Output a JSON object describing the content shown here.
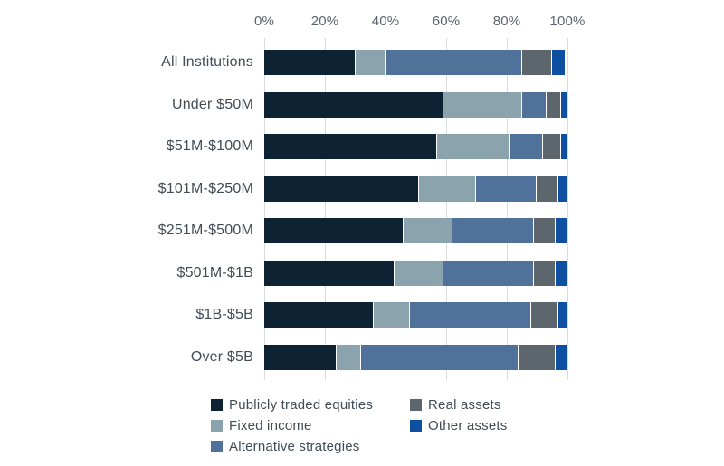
{
  "chart_data": {
    "type": "bar",
    "orientation": "horizontal",
    "stacked": true,
    "title": "",
    "xlabel": "",
    "ylabel": "",
    "xlim": [
      0,
      100
    ],
    "x_ticks": [
      "0%",
      "20%",
      "40%",
      "60%",
      "80%",
      "100%"
    ],
    "x_tick_values": [
      0,
      20,
      40,
      60,
      80,
      100
    ],
    "grid": "vertical",
    "axis_position": "top",
    "legend_position": "bottom",
    "categories": [
      "All Institutions",
      "Under $50M",
      "$51M-$100M",
      "$101M-$250M",
      "$251M-$500M",
      "$501M-$1B",
      "$1B-$5B",
      "Over $5B"
    ],
    "series": [
      {
        "name": "Publicly traded equities",
        "color": "#0d2334",
        "values": [
          30,
          59,
          57,
          51,
          46,
          43,
          36,
          24
        ]
      },
      {
        "name": "Fixed income",
        "color": "#8ba3ad",
        "values": [
          10,
          26,
          24,
          19,
          16,
          16,
          12,
          8
        ]
      },
      {
        "name": "Alternative strategies",
        "color": "#4f719a",
        "values": [
          45,
          8,
          11,
          20,
          27,
          30,
          40,
          52
        ]
      },
      {
        "name": "Real assets",
        "color": "#5e666d",
        "values": [
          10,
          5,
          6,
          7,
          7,
          7,
          9,
          12
        ]
      },
      {
        "name": "Other assets",
        "color": "#0e4fa1",
        "values": [
          4,
          2,
          2,
          3,
          4,
          4,
          3,
          4
        ]
      }
    ]
  },
  "colors": {
    "background": "#ffffff",
    "gridline": "#d9dcdd",
    "axis_text": "#5c646d",
    "category_text": "#414c56",
    "legend_text": "#414c56",
    "segment_separator": "#ffffff"
  }
}
